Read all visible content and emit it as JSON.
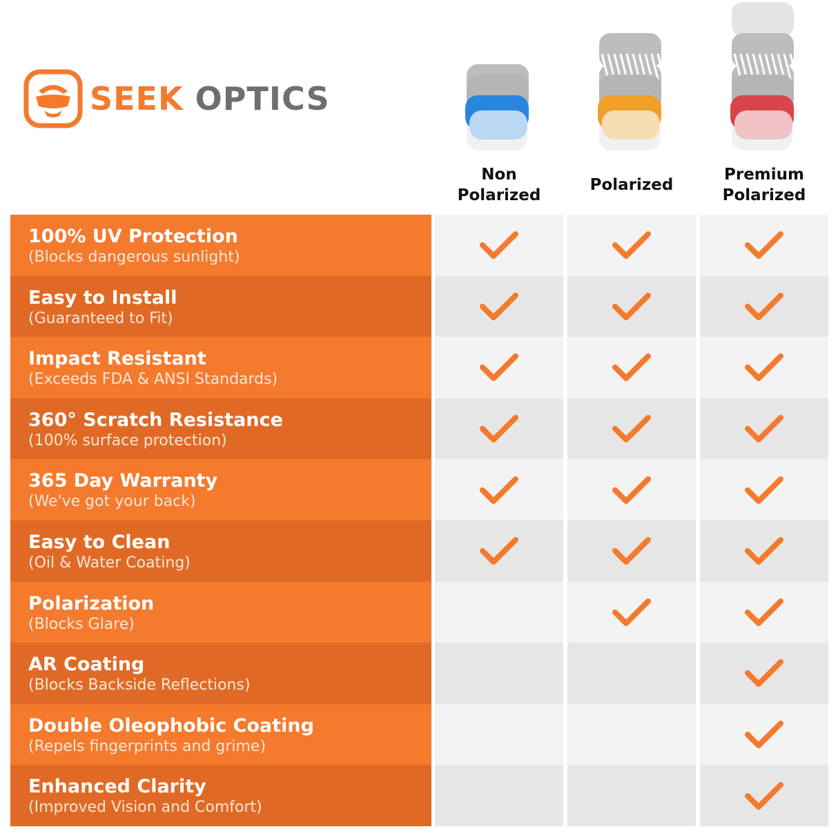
{
  "brand": {
    "name_orange": "SEEK",
    "name_gray": " OPTICS",
    "colors": {
      "orange": "#f47a2e",
      "gray": "#6f6f6f"
    }
  },
  "columns": [
    {
      "label": "Non\nPolarized",
      "lens_color": "#2a86dc",
      "lens_tint": "#b9d8f3",
      "layers": 1
    },
    {
      "label": "Polarized",
      "lens_color": "#f0a028",
      "lens_tint": "#f6ddb4",
      "layers": 2
    },
    {
      "label": "Premium\nPolarized",
      "lens_color": "#d8444a",
      "lens_tint": "#f0c4c6",
      "layers": 3
    }
  ],
  "colors": {
    "row_light": "#f47a2e",
    "row_dark": "#e06a25",
    "cell_light": "#f3f3f3",
    "cell_dark": "#e6e6e6",
    "check": "#f47a2e"
  },
  "rows": [
    {
      "title": "100% UV Protection",
      "subtitle": "(Blocks dangerous sunlight)",
      "checks": [
        true,
        true,
        true
      ]
    },
    {
      "title": "Easy to Install",
      "subtitle": "(Guaranteed to Fit)",
      "checks": [
        true,
        true,
        true
      ]
    },
    {
      "title": "Impact Resistant",
      "subtitle": "(Exceeds FDA & ANSI Standards)",
      "checks": [
        true,
        true,
        true
      ]
    },
    {
      "title": "360° Scratch Resistance",
      "subtitle": "(100% surface protection)",
      "checks": [
        true,
        true,
        true
      ]
    },
    {
      "title": "365 Day Warranty",
      "subtitle": "(We've got your back)",
      "checks": [
        true,
        true,
        true
      ]
    },
    {
      "title": "Easy to Clean",
      "subtitle": "(Oil & Water Coating)",
      "checks": [
        true,
        true,
        true
      ]
    },
    {
      "title": "Polarization",
      "subtitle": "(Blocks Glare)",
      "checks": [
        false,
        true,
        true
      ]
    },
    {
      "title": "AR Coating",
      "subtitle": "(Blocks Backside Reflections)",
      "checks": [
        false,
        false,
        true
      ]
    },
    {
      "title": "Double Oleophobic Coating",
      "subtitle": "(Repels fingerprints and grime)",
      "checks": [
        false,
        false,
        true
      ]
    },
    {
      "title": "Enhanced Clarity",
      "subtitle": "(Improved Vision and Comfort)",
      "checks": [
        false,
        false,
        true
      ]
    }
  ]
}
